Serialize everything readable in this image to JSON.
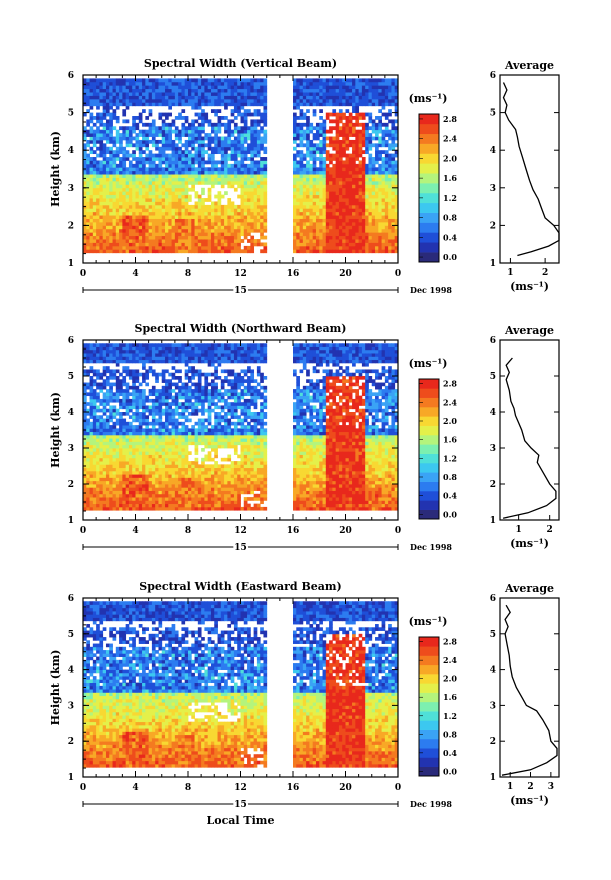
{
  "chart_data": [
    {
      "type": "heatmap",
      "title": "Spectral Width (Vertical Beam)",
      "ylabel": "Height (km)",
      "ylim": [
        1,
        6
      ],
      "yticks": [
        "1",
        "2",
        "3",
        "4",
        "5",
        "6"
      ],
      "xlim": [
        0,
        24
      ],
      "xticks": [
        "0",
        "4",
        "8",
        "12",
        "16",
        "20",
        "0"
      ],
      "day_label": "15",
      "date_label": "Dec 1998",
      "data_gap": [
        14,
        16
      ],
      "colorbar": {
        "unit": "(ms⁻¹)",
        "range": [
          0.0,
          2.8
        ],
        "ticks": [
          "0.0",
          "0.4",
          "0.8",
          "1.2",
          "1.6",
          "2.0",
          "2.4",
          "2.8"
        ]
      },
      "profile": {
        "title": "Average",
        "xlabel": "(ms⁻¹)",
        "xlim": [
          0.7,
          2.4
        ],
        "xticks": [
          "1",
          "2"
        ],
        "xtick_values": [
          1,
          2
        ],
        "points": [
          [
            1.2,
            1.2
          ],
          [
            1.6,
            1.3
          ],
          [
            2.1,
            1.45
          ],
          [
            2.4,
            1.6
          ],
          [
            2.4,
            1.8
          ],
          [
            2.25,
            2.0
          ],
          [
            2.0,
            2.2
          ],
          [
            1.9,
            2.45
          ],
          [
            1.8,
            2.7
          ],
          [
            1.65,
            2.95
          ],
          [
            1.55,
            3.2
          ],
          [
            1.45,
            3.5
          ],
          [
            1.35,
            3.8
          ],
          [
            1.25,
            4.1
          ],
          [
            1.2,
            4.35
          ],
          [
            1.15,
            4.55
          ],
          [
            0.95,
            4.8
          ],
          [
            0.85,
            5.0
          ],
          [
            0.9,
            5.2
          ],
          [
            0.8,
            5.4
          ],
          [
            0.9,
            5.6
          ],
          [
            0.8,
            5.8
          ]
        ]
      }
    },
    {
      "type": "heatmap",
      "title": "Spectral Width (Northward Beam)",
      "ylabel": "Height (km)",
      "ylim": [
        1,
        6
      ],
      "yticks": [
        "1",
        "2",
        "3",
        "4",
        "5",
        "6"
      ],
      "xlim": [
        0,
        24
      ],
      "xticks": [
        "0",
        "4",
        "8",
        "12",
        "16",
        "20",
        "0"
      ],
      "day_label": "15",
      "date_label": "Dec 1998",
      "data_gap": [
        14,
        16
      ],
      "colorbar": {
        "unit": "(ms⁻¹)",
        "range": [
          0.0,
          2.8
        ],
        "ticks": [
          "0.0",
          "0.4",
          "0.8",
          "1.2",
          "1.6",
          "2.0",
          "2.4",
          "2.8"
        ]
      },
      "profile": {
        "title": "Average",
        "xlabel": "(ms⁻¹)",
        "xlim": [
          0.4,
          2.3
        ],
        "xticks": [
          "1",
          "2"
        ],
        "xtick_values": [
          1,
          2
        ],
        "points": [
          [
            0.5,
            1.05
          ],
          [
            1.3,
            1.2
          ],
          [
            1.9,
            1.4
          ],
          [
            2.2,
            1.6
          ],
          [
            2.2,
            1.8
          ],
          [
            2.0,
            2.0
          ],
          [
            1.8,
            2.3
          ],
          [
            1.6,
            2.6
          ],
          [
            1.65,
            2.8
          ],
          [
            1.4,
            3.0
          ],
          [
            1.2,
            3.2
          ],
          [
            1.1,
            3.5
          ],
          [
            1.0,
            3.7
          ],
          [
            0.9,
            3.9
          ],
          [
            0.85,
            4.1
          ],
          [
            0.75,
            4.3
          ],
          [
            0.7,
            4.6
          ],
          [
            0.6,
            4.9
          ],
          [
            0.7,
            5.1
          ],
          [
            0.6,
            5.3
          ],
          [
            0.8,
            5.5
          ]
        ]
      }
    },
    {
      "type": "heatmap",
      "title": "Spectral Width (Eastward Beam)",
      "ylabel": "Height (km)",
      "ylim": [
        1,
        6
      ],
      "yticks": [
        "1",
        "2",
        "3",
        "4",
        "5",
        "6"
      ],
      "xlim": [
        0,
        24
      ],
      "xticks": [
        "0",
        "4",
        "8",
        "12",
        "16",
        "20",
        "0"
      ],
      "day_label": "15",
      "date_label": "Dec 1998",
      "xlabel": "Local Time",
      "data_gap": [
        14,
        16
      ],
      "colorbar": {
        "unit": "(ms⁻¹)",
        "range": [
          0.0,
          2.8
        ],
        "ticks": [
          "0.0",
          "0.4",
          "0.8",
          "1.2",
          "1.6",
          "2.0",
          "2.4",
          "2.8"
        ]
      },
      "profile": {
        "title": "Average",
        "xlabel": "(ms⁻¹)",
        "xlim": [
          0.5,
          3.4
        ],
        "xticks": [
          "1",
          "2",
          "3"
        ],
        "xtick_values": [
          1,
          2,
          3
        ],
        "points": [
          [
            0.6,
            1.05
          ],
          [
            2.0,
            1.2
          ],
          [
            2.8,
            1.4
          ],
          [
            3.3,
            1.6
          ],
          [
            3.3,
            1.8
          ],
          [
            3.0,
            2.0
          ],
          [
            2.9,
            2.3
          ],
          [
            2.6,
            2.6
          ],
          [
            2.3,
            2.85
          ],
          [
            1.8,
            3.0
          ],
          [
            1.6,
            3.2
          ],
          [
            1.3,
            3.5
          ],
          [
            1.1,
            3.8
          ],
          [
            1.0,
            4.1
          ],
          [
            0.95,
            4.4
          ],
          [
            0.85,
            4.7
          ],
          [
            0.75,
            5.0
          ],
          [
            0.9,
            5.2
          ],
          [
            0.75,
            5.4
          ],
          [
            1.0,
            5.6
          ],
          [
            0.8,
            5.8
          ]
        ]
      }
    }
  ]
}
